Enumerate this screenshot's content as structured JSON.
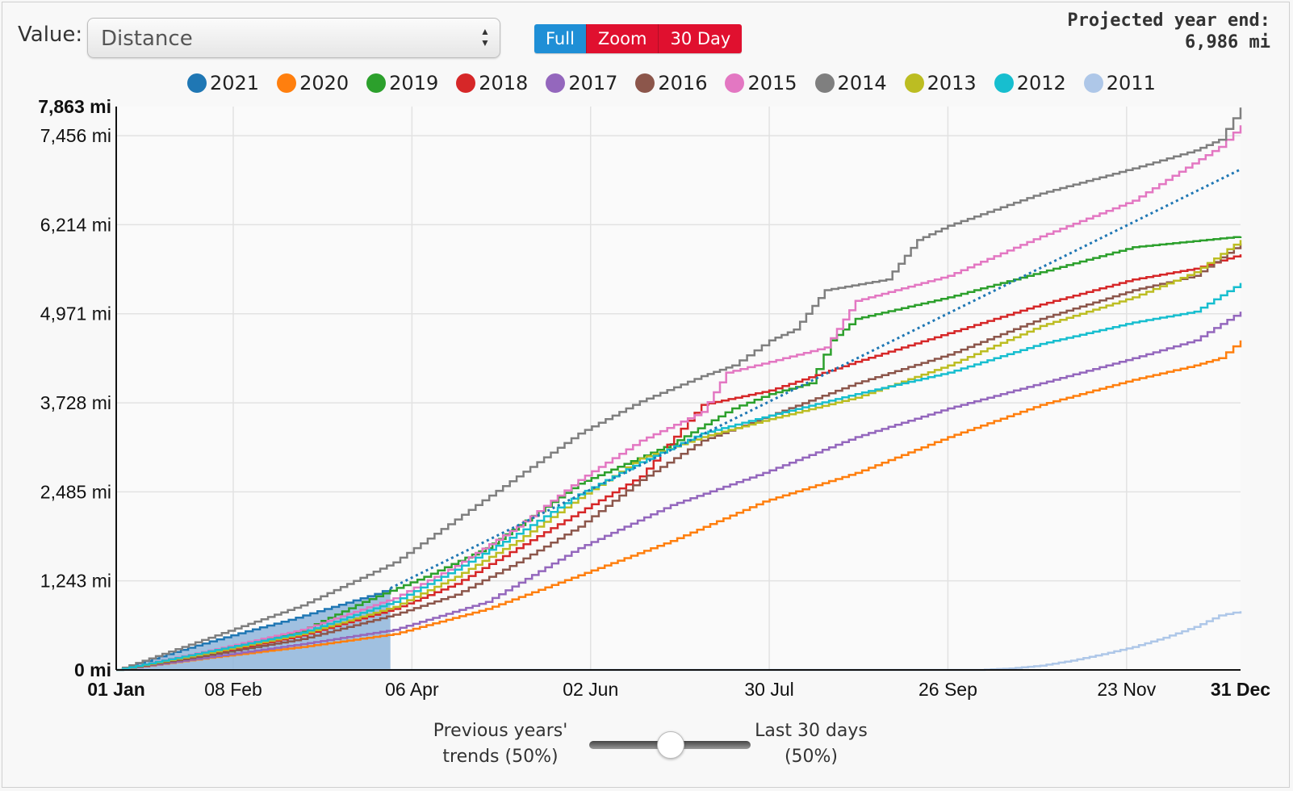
{
  "controls": {
    "value_label": "Value:",
    "value_selected": "Distance",
    "range_buttons": [
      {
        "label": "Full",
        "active": true
      },
      {
        "label": "Zoom",
        "active": false
      },
      {
        "label": "30 Day",
        "active": false
      }
    ],
    "projection_title": "Projected year end:",
    "projection_value": "6,986 mi",
    "slider_left": [
      "Previous years'",
      "trends (50%)"
    ],
    "slider_right": [
      "Last 30 days",
      "(50%)"
    ],
    "slider_value": 0.5
  },
  "chart_data": {
    "type": "line",
    "xlim": [
      0,
      365
    ],
    "ylim": [
      0,
      7863
    ],
    "yticks": [
      {
        "value": 0,
        "label": "0 mi",
        "bold": true
      },
      {
        "value": 1243,
        "label": "1,243 mi",
        "bold": false
      },
      {
        "value": 2485,
        "label": "2,485 mi",
        "bold": false
      },
      {
        "value": 3728,
        "label": "3,728 mi",
        "bold": false
      },
      {
        "value": 4971,
        "label": "4,971 mi",
        "bold": false
      },
      {
        "value": 6214,
        "label": "6,214 mi",
        "bold": false
      },
      {
        "value": 7456,
        "label": "7,456 mi",
        "bold": false
      },
      {
        "value": 7863,
        "label": "7,863 mi",
        "bold": true
      }
    ],
    "xticks": [
      {
        "value": 0,
        "label": "01 Jan",
        "bold": true
      },
      {
        "value": 38,
        "label": "08 Feb",
        "bold": false
      },
      {
        "value": 96,
        "label": "06 Apr",
        "bold": false
      },
      {
        "value": 154,
        "label": "02 Jun",
        "bold": false
      },
      {
        "value": 212,
        "label": "30 Jul",
        "bold": false
      },
      {
        "value": 270,
        "label": "26 Sep",
        "bold": false
      },
      {
        "value": 328,
        "label": "23 Nov",
        "bold": false
      },
      {
        "value": 365,
        "label": "31 Dec",
        "bold": true
      }
    ],
    "grid": true,
    "legend_position": "top",
    "series": [
      {
        "name": "2021",
        "color": "#1f77b4",
        "area": true,
        "x": [
          0,
          14,
          28,
          42,
          56,
          70,
          84,
          89
        ],
        "y": [
          0,
          190,
          370,
          540,
          700,
          880,
          1060,
          1140
        ]
      },
      {
        "name": "2020",
        "color": "#ff7f0e",
        "x": [
          0,
          30,
          60,
          90,
          120,
          150,
          180,
          210,
          240,
          270,
          300,
          330,
          350,
          358,
          365
        ],
        "y": [
          0,
          170,
          320,
          500,
          850,
          1320,
          1800,
          2350,
          2750,
          3250,
          3700,
          4050,
          4250,
          4350,
          4600
        ]
      },
      {
        "name": "2019",
        "color": "#2ca02c",
        "x": [
          0,
          30,
          60,
          80,
          100,
          120,
          150,
          180,
          200,
          212,
          225,
          232,
          240,
          270,
          300,
          330,
          365
        ],
        "y": [
          0,
          250,
          550,
          950,
          1300,
          1700,
          2600,
          3150,
          3650,
          3850,
          4000,
          4600,
          4900,
          5200,
          5550,
          5900,
          6050
        ]
      },
      {
        "name": "2018",
        "color": "#d62728",
        "x": [
          0,
          30,
          60,
          90,
          110,
          130,
          150,
          170,
          190,
          212,
          240,
          270,
          300,
          330,
          350,
          365
        ],
        "y": [
          0,
          220,
          480,
          850,
          1200,
          1700,
          2200,
          2700,
          3700,
          3900,
          4300,
          4700,
          5100,
          5450,
          5600,
          5800
        ]
      },
      {
        "name": "2017",
        "color": "#9467bd",
        "x": [
          0,
          30,
          60,
          90,
          120,
          150,
          180,
          210,
          240,
          270,
          300,
          330,
          350,
          365
        ],
        "y": [
          0,
          180,
          360,
          560,
          950,
          1700,
          2300,
          2750,
          3250,
          3650,
          4000,
          4350,
          4600,
          5000
        ]
      },
      {
        "name": "2016",
        "color": "#8c564b",
        "x": [
          0,
          30,
          60,
          90,
          110,
          130,
          150,
          170,
          190,
          212,
          240,
          270,
          300,
          330,
          350,
          365
        ],
        "y": [
          0,
          210,
          430,
          770,
          1050,
          1500,
          2000,
          2650,
          3200,
          3550,
          4000,
          4400,
          4900,
          5300,
          5500,
          5950
        ]
      },
      {
        "name": "2015",
        "color": "#e377c2",
        "x": [
          0,
          30,
          60,
          90,
          110,
          130,
          150,
          170,
          190,
          198,
          212,
          230,
          240,
          270,
          300,
          330,
          358,
          365
        ],
        "y": [
          0,
          270,
          560,
          1000,
          1450,
          2000,
          2650,
          3200,
          3600,
          4150,
          4300,
          4500,
          5150,
          5500,
          6050,
          6550,
          7300,
          7600
        ]
      },
      {
        "name": "2014",
        "color": "#7f7f7f",
        "x": [
          0,
          30,
          60,
          90,
          110,
          130,
          150,
          170,
          190,
          200,
          212,
          220,
          230,
          250,
          260,
          270,
          300,
          330,
          350,
          358,
          365
        ],
        "y": [
          0,
          450,
          900,
          1500,
          2100,
          2700,
          3300,
          3750,
          4100,
          4250,
          4600,
          4750,
          5300,
          5450,
          6000,
          6200,
          6650,
          7000,
          7250,
          7400,
          7850
        ]
      },
      {
        "name": "2013",
        "color": "#bcbd22",
        "x": [
          0,
          30,
          60,
          90,
          110,
          130,
          150,
          170,
          190,
          212,
          240,
          270,
          300,
          330,
          350,
          365
        ],
        "y": [
          0,
          240,
          500,
          880,
          1300,
          1800,
          2400,
          2950,
          3250,
          3500,
          3800,
          4250,
          4800,
          5200,
          5550,
          6000
        ]
      },
      {
        "name": "2012",
        "color": "#17becf",
        "x": [
          0,
          30,
          60,
          90,
          110,
          130,
          150,
          170,
          190,
          212,
          240,
          270,
          300,
          330,
          350,
          365
        ],
        "y": [
          0,
          260,
          520,
          950,
          1400,
          1900,
          2450,
          2900,
          3300,
          3550,
          3850,
          4150,
          4550,
          4850,
          5000,
          5400
        ]
      },
      {
        "name": "2011",
        "color": "#aec7e8",
        "x": [
          0,
          280,
          290,
          300,
          310,
          320,
          330,
          340,
          350,
          358,
          365
        ],
        "y": [
          0,
          0,
          20,
          60,
          130,
          220,
          320,
          450,
          600,
          760,
          820
        ]
      },
      {
        "name": "",
        "color": "#1f77b4",
        "dotted": true,
        "x": [
          89,
          365
        ],
        "y": [
          1140,
          6986
        ]
      }
    ]
  }
}
